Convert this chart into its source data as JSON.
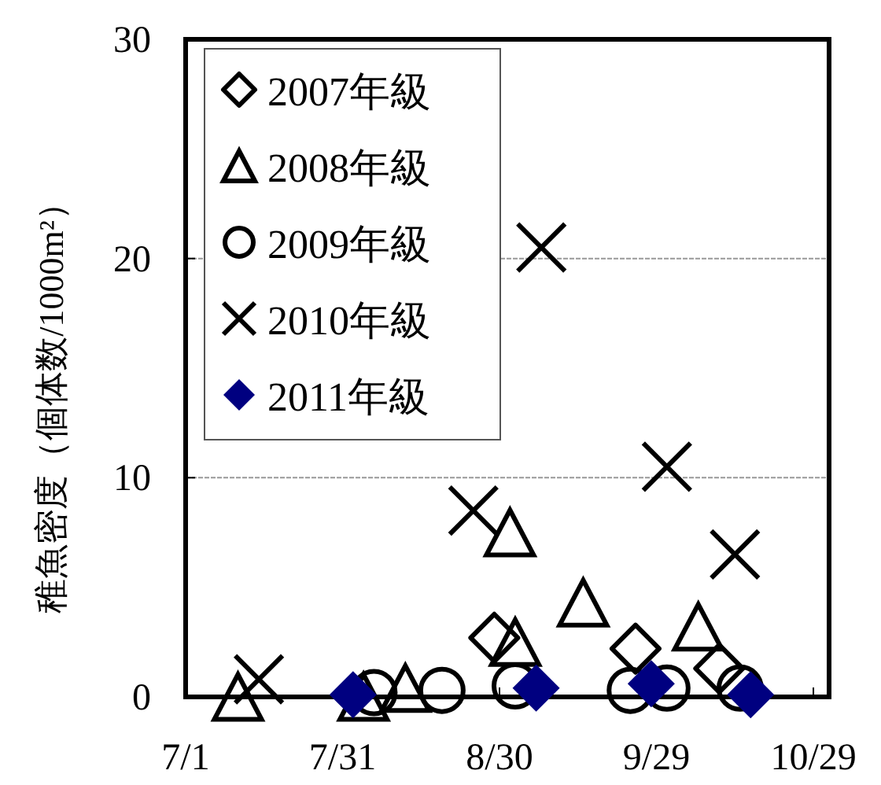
{
  "chart_data": {
    "type": "scatter",
    "ylabel": "稚魚密度（個体数/1000m²）",
    "xlim": [
      "--07-01",
      "--11-01"
    ],
    "xticks": [
      {
        "value": "--07-01",
        "label": "7/1"
      },
      {
        "value": "--07-31",
        "label": "7/31"
      },
      {
        "value": "--08-30",
        "label": "8/30"
      },
      {
        "value": "--09-29",
        "label": "9/29"
      },
      {
        "value": "--10-29",
        "label": "10/29"
      }
    ],
    "ylim": [
      0,
      30
    ],
    "yticks": [
      0,
      10,
      20,
      30
    ],
    "grid": "y",
    "legend": "top left",
    "series": [
      {
        "name": "2007年級",
        "color": "#000000",
        "marker": "diamond",
        "x": [
          "--08-29",
          "--09-25",
          "--10-11"
        ],
        "values": [
          2.7,
          2.2,
          1.3
        ]
      },
      {
        "name": "2008年級",
        "color": "#000000",
        "marker": "triangle",
        "x": [
          "--07-11",
          "--08-04",
          "--08-12",
          "--09-01",
          "--09-02",
          "--09-15",
          "--10-07"
        ],
        "values": [
          0,
          0,
          0.4,
          7.5,
          2.5,
          4.3,
          3.2
        ]
      },
      {
        "name": "2009年級",
        "color": "#000000",
        "marker": "circle",
        "x": [
          "--08-06",
          "--08-19",
          "--09-02",
          "--09-24",
          "--10-01",
          "--10-15"
        ],
        "values": [
          0.2,
          0.3,
          0.5,
          0.3,
          0.4,
          0.4
        ]
      },
      {
        "name": "2010年級",
        "color": "#000000",
        "marker": "cross",
        "x": [
          "--07-15",
          "--08-25",
          "--09-07",
          "--10-01",
          "--10-14"
        ],
        "values": [
          0.8,
          8.5,
          20.5,
          10.5,
          6.5
        ]
      },
      {
        "name": "2011年級",
        "color": "#000080",
        "marker": "diamond",
        "x": [
          "--08-02",
          "--09-06",
          "--09-28",
          "--10-17"
        ],
        "values": [
          0.1,
          0.4,
          0.6,
          0.1
        ]
      }
    ]
  }
}
